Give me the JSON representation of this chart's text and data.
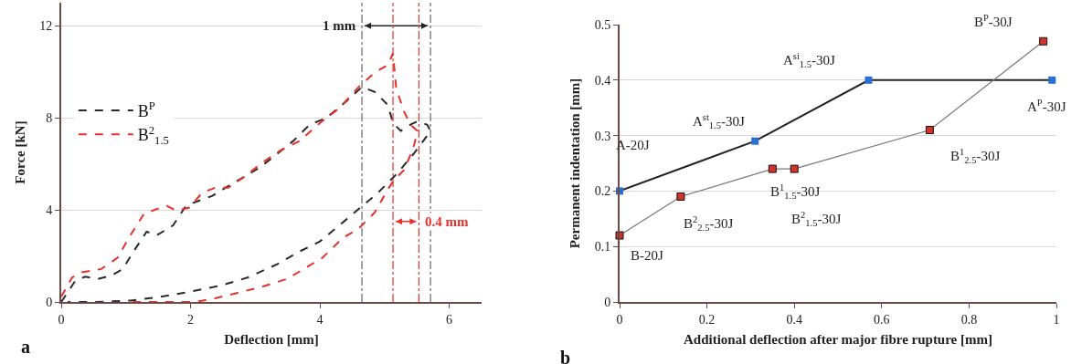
{
  "chart_data": [
    {
      "type": "line",
      "xlabel": "Deflection [mm]",
      "ylabel": "Force [kN]",
      "xlim": [
        0,
        6.5
      ],
      "ylim": [
        0,
        13
      ],
      "xticks": [
        0,
        2,
        4,
        6
      ],
      "yticks": [
        0,
        4,
        8,
        12
      ],
      "grid": "y",
      "legend": "left",
      "line_style": "dashed",
      "marker": "none",
      "series": [
        {
          "name": "B$^{P}$",
          "color": "#2a2a2a",
          "x": [
            0,
            0.22,
            0.37,
            0.57,
            0.77,
            0.95,
            1.12,
            1.32,
            1.48,
            1.73,
            1.93,
            2.13,
            2.33,
            2.58,
            2.84,
            3.09,
            3.34,
            3.59,
            3.84,
            4.1,
            4.4,
            4.65,
            4.85,
            5.05,
            5.13,
            5.25,
            5.4,
            5.51,
            5.66,
            5.71,
            5.6,
            5.45,
            5.2,
            4.9,
            4.6,
            4.3,
            4.0,
            3.69,
            3.34,
            2.89,
            2.48,
            1.98,
            1.48,
            1.07,
            0.57,
            0.1
          ],
          "values": [
            0,
            0.93,
            1.1,
            1.0,
            1.14,
            1.43,
            2.2,
            3.05,
            2.9,
            3.33,
            4.18,
            4.4,
            4.6,
            5.03,
            5.45,
            5.88,
            6.44,
            7.0,
            7.7,
            8.0,
            8.7,
            9.34,
            9.12,
            8.56,
            7.78,
            7.43,
            7.7,
            7.85,
            7.7,
            7.43,
            7.0,
            6.44,
            5.6,
            4.75,
            4.04,
            3.33,
            2.63,
            2.2,
            1.64,
            1.07,
            0.72,
            0.44,
            0.2,
            0.06,
            0,
            0
          ]
        },
        {
          "name": "B$^{2}$$_{1.5}$",
          "color": "#e8302a",
          "x": [
            0,
            0.17,
            0.32,
            0.62,
            0.87,
            1.07,
            1.28,
            1.48,
            1.63,
            1.78,
            1.98,
            2.18,
            2.38,
            2.58,
            2.84,
            3.09,
            3.39,
            3.69,
            4.0,
            4.3,
            4.6,
            4.85,
            5.05,
            5.13,
            5.18,
            5.3,
            5.4,
            5.51,
            5.46,
            5.43,
            5.3,
            5.15,
            5.05,
            4.85,
            4.6,
            4.35,
            4.04,
            3.79,
            3.49,
            3.09,
            2.69,
            2.38,
            2.08,
            1.58,
            1.07
          ],
          "values": [
            0.23,
            1.07,
            1.29,
            1.43,
            1.92,
            2.9,
            3.83,
            4.04,
            4.18,
            3.97,
            4.1,
            4.75,
            4.96,
            4.96,
            5.45,
            6.02,
            6.58,
            7.0,
            7.78,
            8.42,
            9.34,
            9.97,
            10.3,
            10.8,
            9.27,
            8.28,
            7.7,
            7.43,
            6.86,
            6.58,
            5.73,
            5.31,
            4.89,
            3.9,
            3.19,
            2.77,
            1.92,
            1.5,
            1.0,
            0.65,
            0.37,
            0.16,
            0,
            0,
            0
          ]
        }
      ],
      "ref_lines": [
        {
          "axis": "x",
          "value": 4.65,
          "label": null,
          "color": "#666666",
          "line_style": "dashdot"
        },
        {
          "axis": "x",
          "value": 5.71,
          "label": null,
          "color": "#666666",
          "line_style": "dashdot"
        },
        {
          "axis": "x",
          "value": 5.13,
          "label": null,
          "color": "#e8302a",
          "line_style": "dashdot"
        },
        {
          "axis": "x",
          "value": 5.53,
          "label": null,
          "color": "#e8302a",
          "line_style": "dashdot"
        }
      ],
      "annotations": [
        {
          "text": "1 mm",
          "x": 4.65,
          "y": 12
        },
        "0.4 mm",
        "a"
      ]
    },
    {
      "type": "line",
      "xlabel": "Additional deflection after major fibre rupture [mm]",
      "ylabel": "Permanent indentation [mm]",
      "xlim": [
        0,
        1
      ],
      "ylim": [
        0,
        0.5
      ],
      "xticks": [
        0,
        0.2,
        0.4,
        0.6,
        0.8,
        1
      ],
      "yticks": [
        0,
        0.1,
        0.2,
        0.3,
        0.4,
        0.5
      ],
      "grid": "y",
      "marker": "square",
      "series": [
        {
          "color": "#2b6fd1",
          "x": [
            0,
            0.31,
            0.57,
            0.99
          ],
          "values": [
            0.2,
            0.29,
            0.4,
            0.4
          ]
        },
        {
          "color": "#d0342c",
          "x": [
            0,
            0.14,
            0.35,
            0.4,
            0.71,
            0.97
          ],
          "values": [
            0.12,
            0.19,
            0.24,
            0.24,
            0.31,
            0.47
          ]
        }
      ],
      "annotations": [
        {
          "text": "A-20J",
          "x": 0,
          "y": 0.2
        },
        {
          "text": "A$^{st}$$_{1.5}$-30J",
          "x": 0.31,
          "y": 0.29
        },
        {
          "text": "A$^{si}$$_{1.5}$-30J",
          "x": 0.57,
          "y": 0.4
        },
        {
          "text": "A$^{P}$-30J",
          "x": 0.99,
          "y": 0.4
        },
        {
          "text": "B-20J",
          "x": 0,
          "y": 0.12
        },
        {
          "text": "B$^{2}$$_{2.5}$-30J",
          "x": 0.14,
          "y": 0.19
        },
        {
          "text": "B$^{1}$$_{1.5}$-30J",
          "x": 0.35,
          "y": 0.24
        },
        "B$^{2}$$_{1.5}$-30J",
        {
          "text": "B$^{1}$$_{2.5}$-30J",
          "x": 0.71,
          "y": 0.31
        },
        {
          "text": "B$^{P}$-30J",
          "x": 0.97,
          "y": 0.47
        },
        "b"
      ]
    }
  ]
}
